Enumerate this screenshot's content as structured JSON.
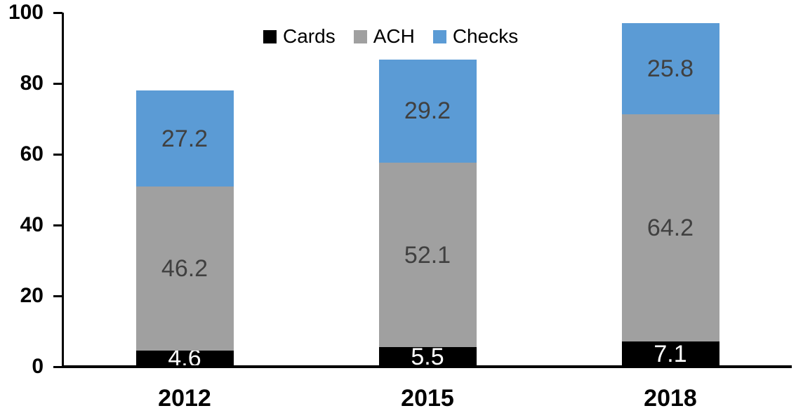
{
  "chart_data": {
    "type": "bar",
    "stacked": true,
    "title": "",
    "categories": [
      "2012",
      "2015",
      "2018"
    ],
    "series": [
      {
        "name": "Cards",
        "color": "#000000",
        "label_color": "#FFFFFF",
        "values": [
          4.6,
          5.5,
          7.1
        ]
      },
      {
        "name": "ACH",
        "color": "#A0A0A0",
        "label_color": "#404040",
        "values": [
          46.2,
          52.1,
          64.2
        ]
      },
      {
        "name": "Checks",
        "color": "#5B9BD5",
        "label_color": "#404040",
        "values": [
          27.2,
          29.2,
          25.8
        ]
      }
    ],
    "ylim": [
      0,
      100
    ],
    "yticks": [
      0,
      20,
      40,
      60,
      80,
      100
    ],
    "grid": false,
    "legend_position": "top",
    "axis_color": "#000000"
  }
}
